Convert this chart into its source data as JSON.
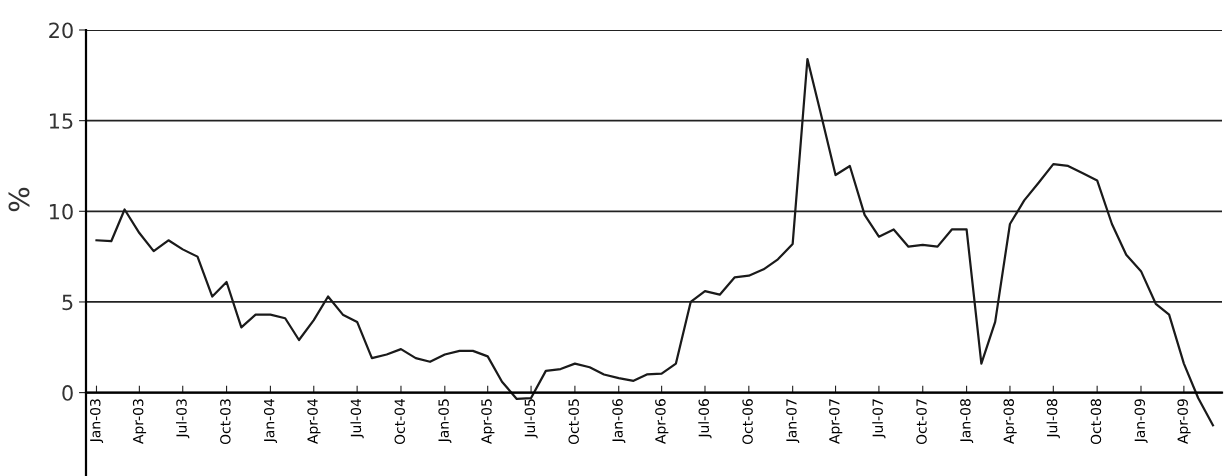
{
  "chart_data": {
    "type": "line",
    "ylabel": "%",
    "x": [
      "2003-01",
      "2003-02",
      "2003-03",
      "2003-04",
      "2003-05",
      "2003-06",
      "2003-07",
      "2003-08",
      "2003-09",
      "2003-10",
      "2003-11",
      "2003-12",
      "2004-01",
      "2004-02",
      "2004-03",
      "2004-04",
      "2004-05",
      "2004-06",
      "2004-07",
      "2004-08",
      "2004-09",
      "2004-10",
      "2004-11",
      "2004-12",
      "2005-01",
      "2005-02",
      "2005-03",
      "2005-04",
      "2005-05",
      "2005-06",
      "2005-07",
      "2005-08",
      "2005-09",
      "2005-10",
      "2005-11",
      "2005-12",
      "2006-01",
      "2006-02",
      "2006-03",
      "2006-04",
      "2006-05",
      "2006-06",
      "2006-07",
      "2006-08",
      "2006-09",
      "2006-10",
      "2006-11",
      "2006-12",
      "2007-01",
      "2007-02",
      "2007-03",
      "2007-04",
      "2007-05",
      "2007-06",
      "2007-07",
      "2007-08",
      "2007-09",
      "2007-10",
      "2007-11",
      "2007-12",
      "2008-01",
      "2008-02",
      "2008-03",
      "2008-04",
      "2008-05",
      "2008-06",
      "2008-07",
      "2008-08",
      "2008-09",
      "2008-10",
      "2008-11",
      "2008-12",
      "2009-01",
      "2009-02",
      "2009-03",
      "2009-04",
      "2009-05",
      "2009-06"
    ],
    "series": [
      {
        "color": "#1a1a1a",
        "values": [
          8.4,
          8.35,
          10.1,
          8.8,
          7.8,
          8.4,
          7.9,
          7.5,
          5.3,
          6.1,
          3.6,
          4.3,
          4.3,
          4.1,
          2.9,
          4.0,
          5.3,
          4.3,
          3.9,
          1.9,
          2.1,
          2.4,
          1.9,
          1.7,
          2.1,
          2.3,
          2.3,
          2.0,
          0.6,
          -0.35,
          -0.3,
          1.2,
          1.3,
          1.6,
          1.4,
          1.0,
          0.8,
          0.65,
          1.0,
          1.05,
          1.6,
          5.0,
          5.6,
          5.4,
          6.35,
          6.45,
          6.8,
          7.35,
          8.2,
          18.4,
          15.4,
          12.0,
          12.5,
          9.8,
          8.6,
          9.0,
          8.05,
          8.15,
          8.05,
          9.0,
          9.0,
          1.6,
          3.9,
          9.3,
          10.6,
          11.6,
          12.6,
          12.5,
          12.1,
          11.7,
          9.3,
          7.6,
          6.7,
          4.9,
          4.3,
          1.6,
          -0.3,
          -1.8
        ]
      }
    ],
    "xlim": [
      "2002-12-10",
      "2009-06-20"
    ],
    "ylim": [
      -4.6,
      20
    ],
    "yticks": [
      0,
      5,
      10,
      15,
      20
    ],
    "xticks": [
      {
        "value": "2003-01",
        "label": "Jan-03"
      },
      {
        "value": "2003-04",
        "label": "Apr-03"
      },
      {
        "value": "2003-07",
        "label": "Jul-03"
      },
      {
        "value": "2003-10",
        "label": "Oct-03"
      },
      {
        "value": "2004-01",
        "label": "Jan-04"
      },
      {
        "value": "2004-04",
        "label": "Apr-04"
      },
      {
        "value": "2004-07",
        "label": "Jul-04"
      },
      {
        "value": "2004-10",
        "label": "Oct-04"
      },
      {
        "value": "2005-01",
        "label": "Jan-05"
      },
      {
        "value": "2005-04",
        "label": "Apr-05"
      },
      {
        "value": "2005-07",
        "label": "Jul-05"
      },
      {
        "value": "2005-10",
        "label": "Oct-05"
      },
      {
        "value": "2006-01",
        "label": "Jan-06"
      },
      {
        "value": "2006-04",
        "label": "Apr-06"
      },
      {
        "value": "2006-07",
        "label": "Jul-06"
      },
      {
        "value": "2006-10",
        "label": "Oct-06"
      },
      {
        "value": "2007-01",
        "label": "Jan-07"
      },
      {
        "value": "2007-04",
        "label": "Apr-07"
      },
      {
        "value": "2007-07",
        "label": "Jul-07"
      },
      {
        "value": "2007-10",
        "label": "Oct-07"
      },
      {
        "value": "2008-01",
        "label": "Jan-08"
      },
      {
        "value": "2008-04",
        "label": "Apr-08"
      },
      {
        "value": "2008-07",
        "label": "Jul-08"
      },
      {
        "value": "2008-10",
        "label": "Oct-08"
      },
      {
        "value": "2009-01",
        "label": "Jan-09"
      },
      {
        "value": "2009-04",
        "label": "Apr-09"
      }
    ],
    "grid": "y",
    "line_style": "solid",
    "marker": "none"
  }
}
